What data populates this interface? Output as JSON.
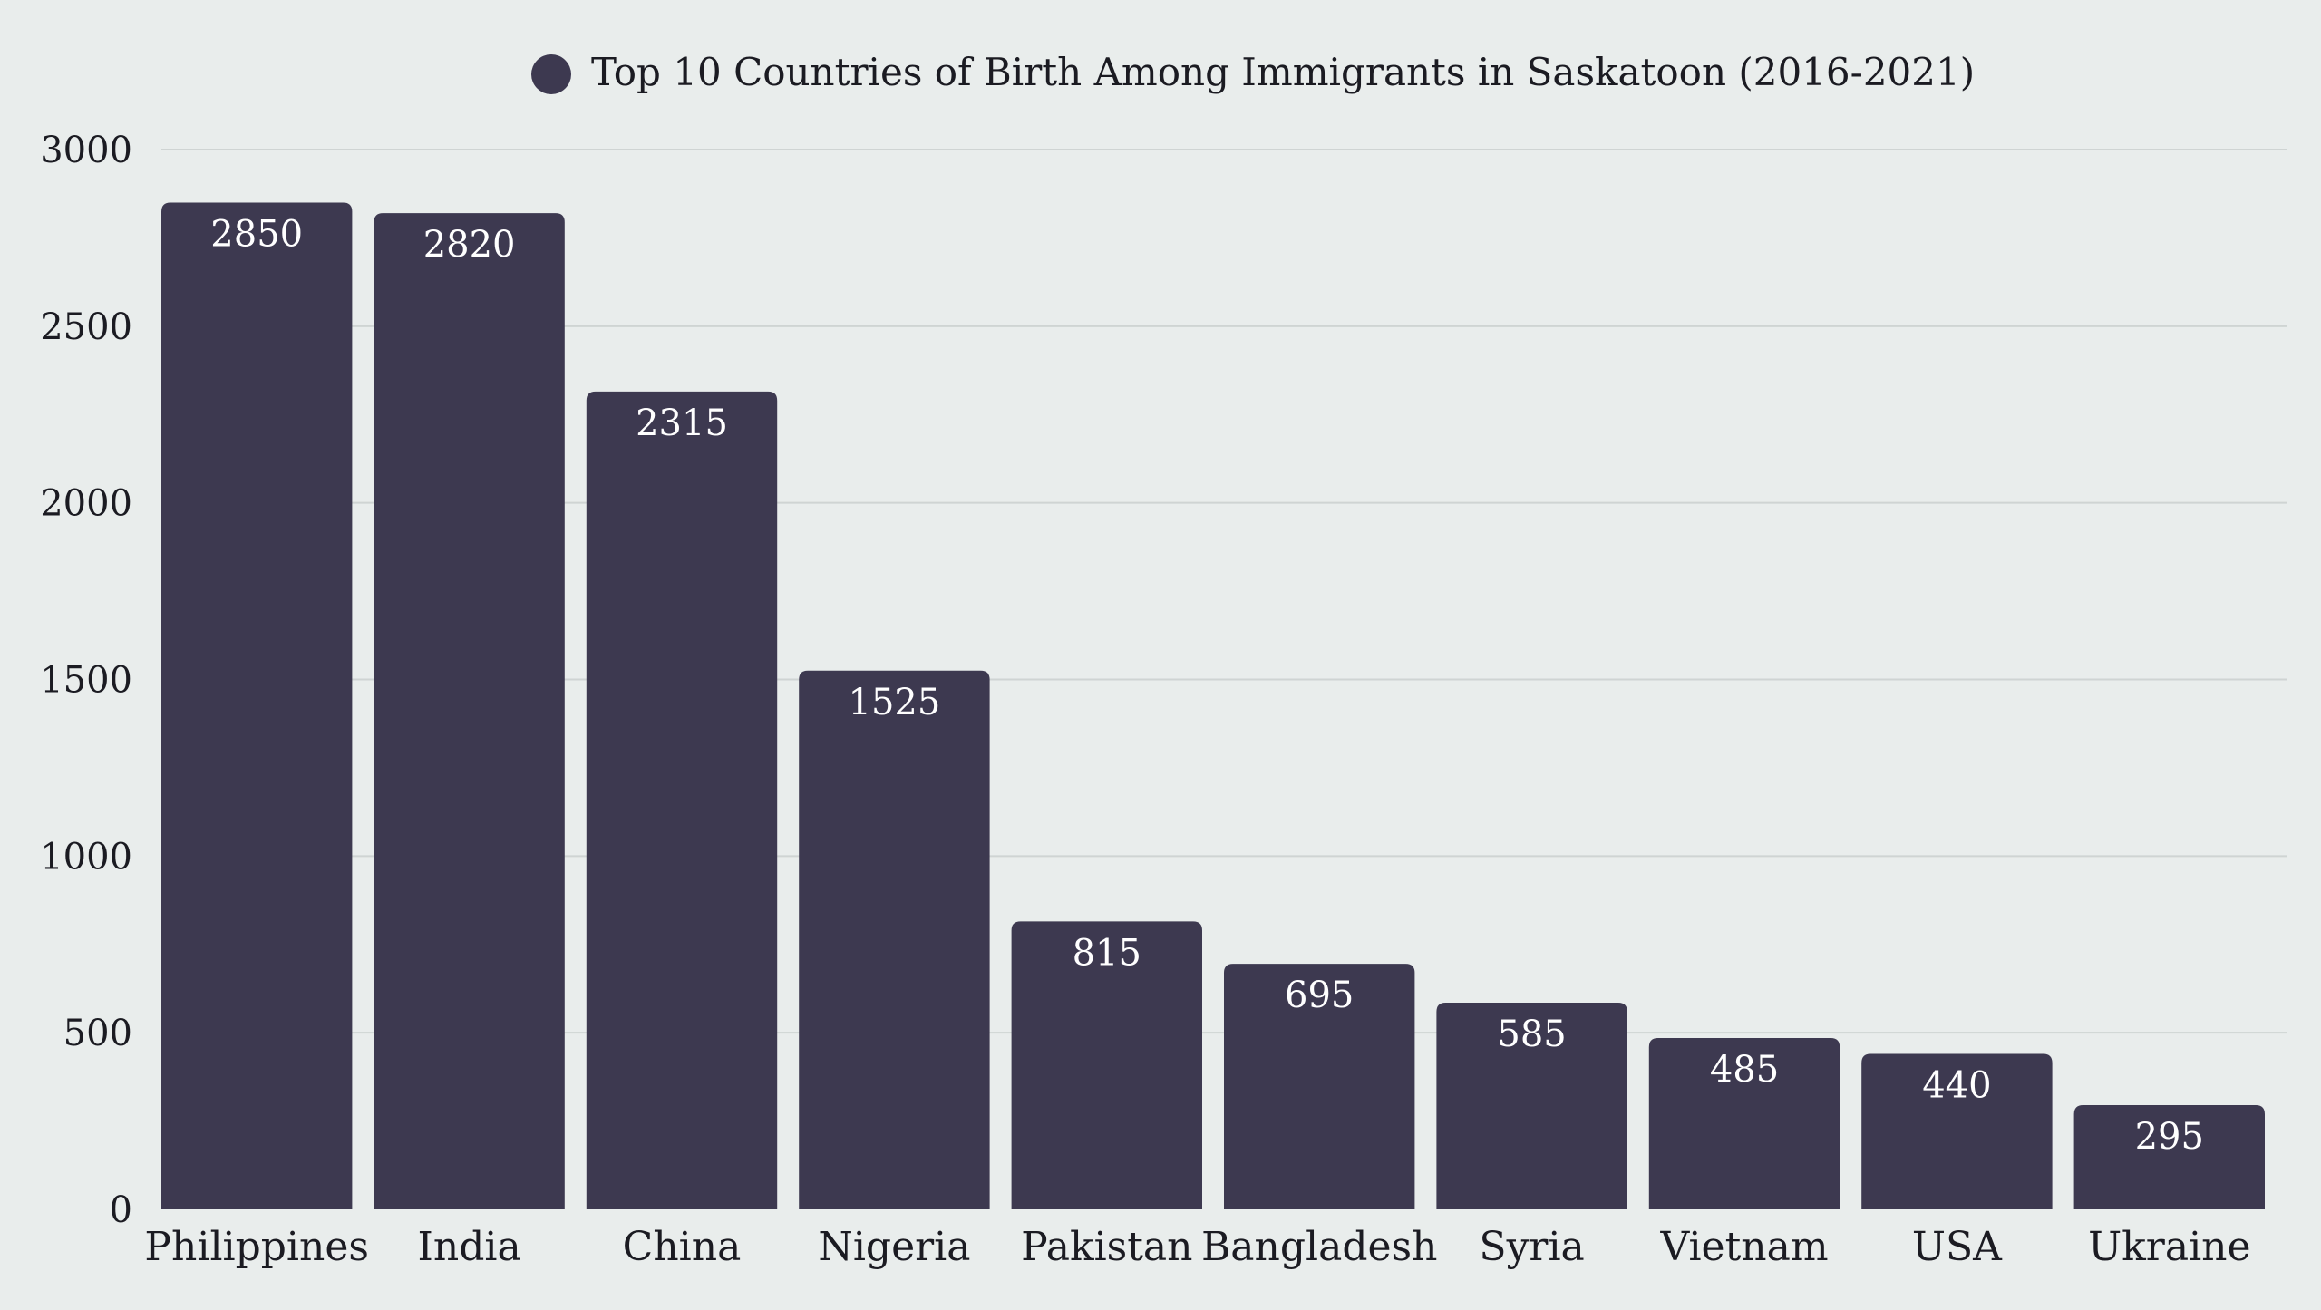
{
  "chart_data": {
    "type": "bar",
    "title": "Top 10 Countries of Birth Among Immigrants in Saskatoon (2016-2021)",
    "legend_position": "top-center",
    "series": [
      {
        "name": "Top 10 Countries of Birth Among Immigrants in Saskatoon (2016-2021)",
        "color": "#3d3950",
        "values": [
          2850,
          2820,
          2315,
          1525,
          815,
          695,
          585,
          485,
          440,
          295
        ]
      }
    ],
    "categories": [
      "Philippines",
      "India",
      "China",
      "Nigeria",
      "Pakistan",
      "Bangladesh",
      "Syria",
      "Vietnam",
      "USA",
      "Ukraine"
    ],
    "y_ticks": [
      "0",
      "500",
      "1000",
      "1500",
      "2000",
      "2500",
      "3000"
    ],
    "ylim": [
      0,
      3000
    ],
    "grid": true,
    "xlabel": "",
    "ylabel": ""
  },
  "colors": {
    "background": "#e9edec",
    "bar": "#3d3950",
    "grid": "#cfd4d3",
    "text": "#1b1b22",
    "value_text": "#ffffff"
  }
}
